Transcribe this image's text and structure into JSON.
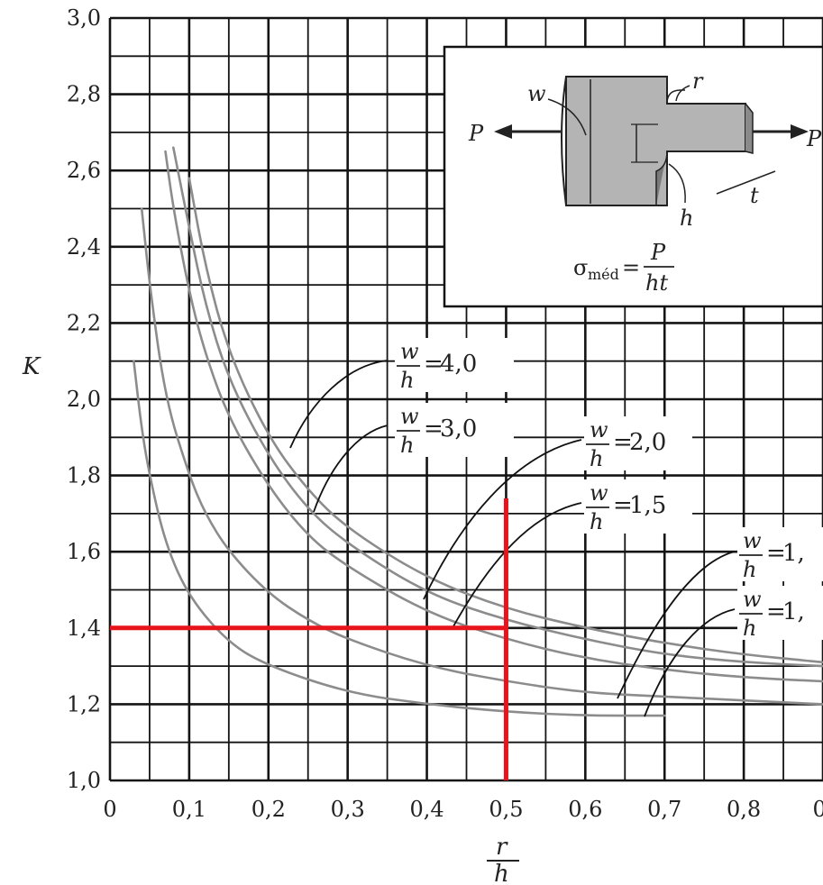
{
  "chart_data": {
    "type": "line",
    "title": "",
    "xlabel": {
      "numerator": "r",
      "denominator": "h"
    },
    "ylabel": "K",
    "xlim": [
      0,
      0.9
    ],
    "ylim": [
      1.0,
      3.0
    ],
    "x_ticks": [
      "0",
      "0,1",
      "0,2",
      "0,3",
      "0,4",
      "0,5",
      "0,6",
      "0,7",
      "0,8",
      "0,"
    ],
    "y_ticks": [
      "1,0",
      "1,2",
      "1,4",
      "1,6",
      "1,8",
      "2,0",
      "2,2",
      "2,4",
      "2,6",
      "2,8",
      "3,0"
    ],
    "grid": true,
    "series": [
      {
        "name": "w/h = 4,0",
        "ratio_label": "4,0",
        "x": [
          0.1,
          0.12,
          0.15,
          0.2,
          0.25,
          0.3,
          0.4,
          0.5,
          0.6,
          0.7,
          0.8,
          0.9
        ],
        "y": [
          2.58,
          2.35,
          2.12,
          1.9,
          1.76,
          1.66,
          1.53,
          1.45,
          1.4,
          1.36,
          1.33,
          1.31
        ]
      },
      {
        "name": "w/h = 3,0",
        "ratio_label": "3,0",
        "x": [
          0.08,
          0.1,
          0.12,
          0.15,
          0.2,
          0.25,
          0.3,
          0.4,
          0.5,
          0.6,
          0.7,
          0.8,
          0.9
        ],
        "y": [
          2.66,
          2.45,
          2.25,
          2.05,
          1.85,
          1.71,
          1.62,
          1.49,
          1.42,
          1.37,
          1.33,
          1.31,
          1.3
        ]
      },
      {
        "name": "w/h = 2,0",
        "ratio_label": "2,0",
        "x": [
          0.07,
          0.08,
          0.1,
          0.12,
          0.15,
          0.2,
          0.25,
          0.3,
          0.4,
          0.5,
          0.6,
          0.7,
          0.8,
          0.9
        ],
        "y": [
          2.65,
          2.5,
          2.28,
          2.12,
          1.95,
          1.77,
          1.64,
          1.56,
          1.44,
          1.37,
          1.32,
          1.29,
          1.27,
          1.26
        ]
      },
      {
        "name": "w/h = 1,5",
        "ratio_label": "1,5",
        "x": [
          0.04,
          0.05,
          0.07,
          0.1,
          0.12,
          0.15,
          0.2,
          0.25,
          0.3,
          0.4,
          0.5,
          0.6,
          0.7,
          0.8,
          0.9
        ],
        "y": [
          2.5,
          2.3,
          2.0,
          1.8,
          1.7,
          1.6,
          1.49,
          1.42,
          1.37,
          1.3,
          1.26,
          1.23,
          1.22,
          1.21,
          1.2
        ]
      },
      {
        "name": "w/h = 1,",
        "ratio_label": "1,",
        "x": [
          0.03,
          0.04,
          0.05,
          0.07,
          0.1,
          0.15,
          0.2,
          0.3,
          0.4,
          0.5,
          0.6,
          0.7
        ],
        "y": [
          2.1,
          1.92,
          1.8,
          1.62,
          1.48,
          1.36,
          1.3,
          1.23,
          1.2,
          1.18,
          1.17,
          1.17
        ]
      }
    ],
    "extra_curve_labels": [
      "1,"
    ],
    "annotations": {
      "highlight_x": 0.5,
      "highlight_y": 1.4,
      "highlight_color": "#e8141c"
    },
    "inset": {
      "formula_sigma": "σ",
      "formula_sub": "méd",
      "formula_eq": "=",
      "formula_num": "P",
      "formula_den": "ht",
      "labels": {
        "w": "w",
        "r": "r",
        "h": "h",
        "t": "t",
        "P_left": "P",
        "P_right": "P"
      }
    }
  },
  "colors": {
    "grid": "#141414",
    "curve": "#8c8c8c",
    "highlight": "#e8141c",
    "inset_fill": "#b4b4b4"
  }
}
